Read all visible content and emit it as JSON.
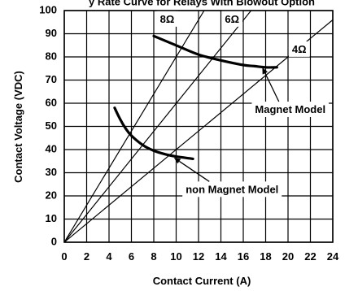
{
  "chart_data": {
    "type": "line",
    "title": "y Rate Curve for Relays With Blowout Option",
    "xlabel": "Contact Current (A)",
    "ylabel": "Contact Voltage (VDC)",
    "xlim": [
      0,
      24
    ],
    "ylim": [
      0,
      100
    ],
    "x_ticks": [
      "0",
      "2",
      "4",
      "6",
      "8",
      "10",
      "12",
      "14",
      "16",
      "18",
      "20",
      "22",
      "24"
    ],
    "y_ticks": [
      "0",
      "10",
      "20",
      "30",
      "40",
      "50",
      "60",
      "70",
      "80",
      "90",
      "100"
    ],
    "grid": true,
    "resistance_lines": [
      {
        "name": "8Ω",
        "points": [
          [
            0,
            0
          ],
          [
            12.5,
            100
          ]
        ]
      },
      {
        "name": "6Ω",
        "points": [
          [
            0,
            0
          ],
          [
            16.7,
            100
          ]
        ]
      },
      {
        "name": "4Ω",
        "points": [
          [
            0,
            0
          ],
          [
            25,
            100
          ]
        ]
      }
    ],
    "series": [
      {
        "name": "Magnet Model",
        "x": [
          8,
          10,
          12,
          14,
          16,
          17,
          18,
          19
        ],
        "y": [
          89,
          85,
          81,
          78.5,
          76.5,
          76,
          75.5,
          75.5
        ]
      },
      {
        "name": "non Magnet Model",
        "x": [
          4.5,
          5,
          5.5,
          6,
          7,
          8,
          9,
          10,
          11.5
        ],
        "y": [
          58,
          53,
          49,
          46,
          42,
          39.5,
          38,
          37,
          36
        ]
      }
    ],
    "annotations": [
      {
        "text": "8Ω",
        "x": 9.2,
        "y": 96,
        "type": "line-label"
      },
      {
        "text": "6Ω",
        "x": 15,
        "y": 96,
        "type": "line-label"
      },
      {
        "text": "4Ω",
        "x": 21,
        "y": 83,
        "type": "line-label"
      },
      {
        "text": "Magnet Model",
        "x": 20.2,
        "y": 57,
        "arrow_to": [
          17.7,
          75.5
        ],
        "type": "callout"
      },
      {
        "text": "non Magnet Model",
        "x": 15,
        "y": 22.5,
        "arrow_to": [
          9.8,
          36.5
        ],
        "type": "callout"
      }
    ]
  }
}
